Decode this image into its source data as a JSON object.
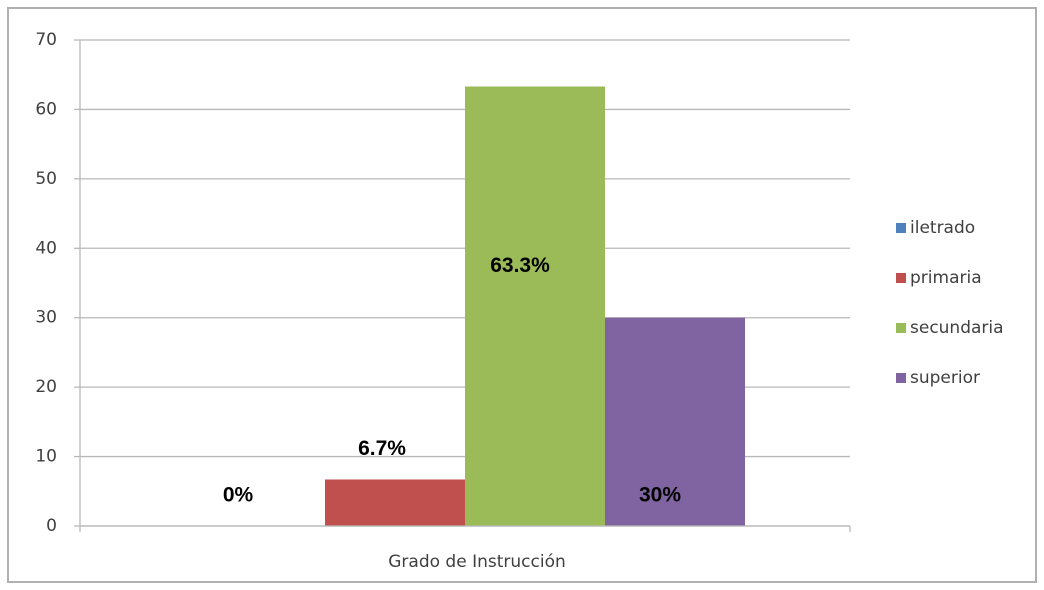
{
  "chart_data": {
    "type": "bar",
    "categories": [
      "Grado de Instrucción"
    ],
    "series": [
      {
        "name": "iletrado",
        "color": "#4f81bd",
        "values": [
          0
        ],
        "value_labels": [
          "0%"
        ]
      },
      {
        "name": "primaria",
        "color": "#c0504d",
        "values": [
          6.7
        ],
        "value_labels": [
          "6.7%"
        ]
      },
      {
        "name": "secundaria",
        "color": "#9bbb59",
        "values": [
          63.3
        ],
        "value_labels": [
          "63.3%"
        ]
      },
      {
        "name": "superior",
        "color": "#8064a2",
        "values": [
          30
        ],
        "value_labels": [
          "30%"
        ]
      }
    ],
    "ylim": [
      0,
      70
    ],
    "yticks": [
      0,
      10,
      20,
      30,
      40,
      50,
      60,
      70
    ],
    "grid": true,
    "legend": "right"
  }
}
